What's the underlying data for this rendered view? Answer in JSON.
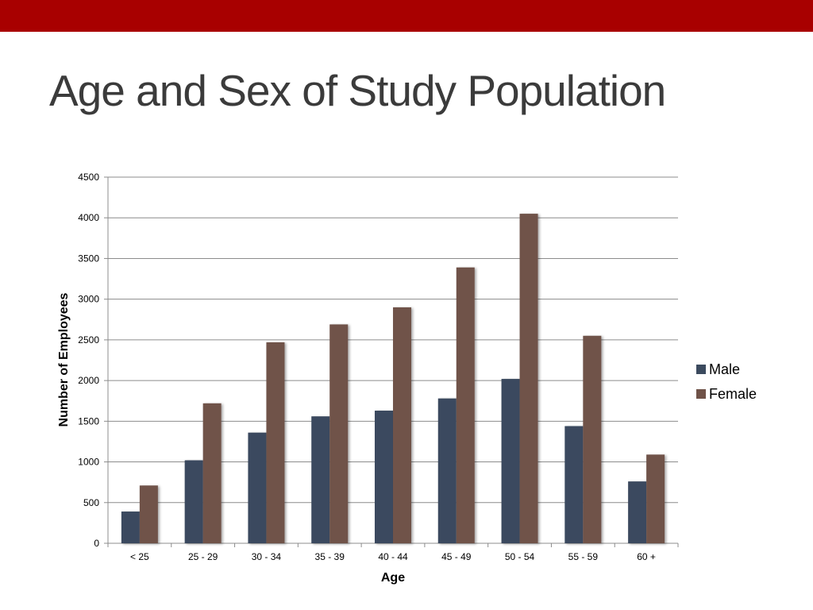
{
  "slide": {
    "title": "Age and Sex of Study Population",
    "accent_color": "#a80000"
  },
  "chart_data": {
    "type": "bar",
    "title": "",
    "xlabel": "Age",
    "ylabel": "Number of Employees",
    "categories": [
      "< 25",
      "25 - 29",
      "30 - 34",
      "35 - 39",
      "40 - 44",
      "45 - 49",
      "50 - 54",
      "55 - 59",
      "60 +"
    ],
    "series": [
      {
        "name": "Male",
        "color": "#3b4a5e",
        "values": [
          390,
          1020,
          1360,
          1560,
          1630,
          1780,
          2020,
          1440,
          760
        ]
      },
      {
        "name": "Female",
        "color": "#6f5248",
        "values": [
          710,
          1720,
          2470,
          2690,
          2900,
          3390,
          4050,
          2550,
          1090
        ]
      }
    ],
    "ylim": [
      0,
      4500
    ],
    "yticks": [
      0,
      500,
      1000,
      1500,
      2000,
      2500,
      3000,
      3500,
      4000,
      4500
    ],
    "grid": true,
    "legend_position": "right"
  }
}
